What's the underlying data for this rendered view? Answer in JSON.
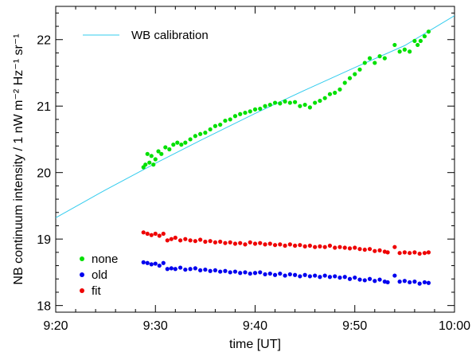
{
  "chart_data": {
    "type": "scatter",
    "title": "",
    "xlabel": "time [UT]",
    "ylabel": "NB continuum intensity / 1 nW m⁻² Hz⁻¹ sr⁻¹",
    "x_unit": "minutes after 9:00 UT",
    "xlim": [
      20,
      60
    ],
    "ylim": [
      17.9,
      22.5
    ],
    "x_ticks": [
      {
        "value": 20,
        "label": "9:20"
      },
      {
        "value": 30,
        "label": "9:30"
      },
      {
        "value": 40,
        "label": "9:40"
      },
      {
        "value": 50,
        "label": "9:50"
      },
      {
        "value": 60,
        "label": "10:00"
      }
    ],
    "y_ticks": [
      {
        "value": 18,
        "label": "18"
      },
      {
        "value": 19,
        "label": "19"
      },
      {
        "value": 20,
        "label": "20"
      },
      {
        "value": 21,
        "label": "21"
      },
      {
        "value": 22,
        "label": "22"
      }
    ],
    "grid": false,
    "legends": [
      {
        "placement": "top-left",
        "entries": [
          {
            "name": "WB calibration",
            "color": "#33ccee",
            "kind": "line"
          }
        ]
      },
      {
        "placement": "bottom-left",
        "entries": [
          {
            "name": "none",
            "color": "#00e000",
            "kind": "point"
          },
          {
            "name": "old",
            "color": "#0000ee",
            "kind": "point"
          },
          {
            "name": "fit",
            "color": "#ee0000",
            "kind": "point"
          }
        ]
      }
    ],
    "series": [
      {
        "name": "WB calibration",
        "kind": "line",
        "color": "#33ccee",
        "x": [
          20,
          25,
          30,
          35,
          40,
          45,
          50,
          55,
          60
        ],
        "y": [
          19.32,
          19.74,
          20.14,
          20.52,
          20.89,
          21.24,
          21.58,
          21.91,
          22.36
        ]
      },
      {
        "name": "none",
        "kind": "points",
        "color": "#00e000",
        "x": [
          28.8,
          29.0,
          29.2,
          29.4,
          29.6,
          29.8,
          30.0,
          30.3,
          30.6,
          31.0,
          31.4,
          31.8,
          32.2,
          32.6,
          33.0,
          33.5,
          34.0,
          34.5,
          35.0,
          35.5,
          36.0,
          36.5,
          37.0,
          37.5,
          38.0,
          38.5,
          39.0,
          39.5,
          40.0,
          40.5,
          41.0,
          41.5,
          42.0,
          42.5,
          43.0,
          43.5,
          44.0,
          44.5,
          45.0,
          45.5,
          46.0,
          46.5,
          47.0,
          47.5,
          48.0,
          48.5,
          49.0,
          49.5,
          50.0,
          50.5,
          51.0,
          51.5,
          52.0,
          52.5,
          53.0,
          54.0,
          54.5,
          55.0,
          55.5,
          56.0,
          56.3,
          56.6,
          57.0,
          57.4
        ],
        "y": [
          20.08,
          20.12,
          20.28,
          20.15,
          20.25,
          20.12,
          20.2,
          20.32,
          20.28,
          20.38,
          20.35,
          20.42,
          20.45,
          20.42,
          20.45,
          20.5,
          20.55,
          20.58,
          20.6,
          20.65,
          20.7,
          20.72,
          20.78,
          20.8,
          20.85,
          20.88,
          20.9,
          20.92,
          20.95,
          20.96,
          21.0,
          21.02,
          21.05,
          21.04,
          21.07,
          21.05,
          21.06,
          21.0,
          21.02,
          20.98,
          21.05,
          21.08,
          21.12,
          21.18,
          21.2,
          21.25,
          21.35,
          21.42,
          21.48,
          21.55,
          21.65,
          21.72,
          21.65,
          21.75,
          21.72,
          21.92,
          21.82,
          21.85,
          21.82,
          21.98,
          21.92,
          21.98,
          22.05,
          22.12
        ]
      },
      {
        "name": "old",
        "kind": "points",
        "color": "#0000ee",
        "x": [
          28.8,
          29.2,
          29.6,
          30.0,
          30.4,
          30.8,
          31.2,
          31.6,
          32.0,
          32.5,
          33.0,
          33.5,
          34.0,
          34.5,
          35.0,
          35.5,
          36.0,
          36.5,
          37.0,
          37.5,
          38.0,
          38.5,
          39.0,
          39.5,
          40.0,
          40.5,
          41.0,
          41.5,
          42.0,
          42.5,
          43.0,
          43.5,
          44.0,
          44.5,
          45.0,
          45.5,
          46.0,
          46.5,
          47.0,
          47.5,
          48.0,
          48.5,
          49.0,
          49.5,
          50.0,
          50.5,
          51.0,
          51.5,
          52.0,
          52.5,
          53.0,
          53.3,
          54.0,
          54.5,
          55.0,
          55.5,
          56.0,
          56.5,
          57.0,
          57.4
        ],
        "y": [
          18.65,
          18.64,
          18.62,
          18.63,
          18.6,
          18.64,
          18.55,
          18.56,
          18.55,
          18.57,
          18.54,
          18.55,
          18.56,
          18.53,
          18.54,
          18.52,
          18.53,
          18.51,
          18.52,
          18.5,
          18.51,
          18.49,
          18.5,
          18.48,
          18.49,
          18.5,
          18.47,
          18.48,
          18.46,
          18.48,
          18.45,
          18.47,
          18.46,
          18.44,
          18.46,
          18.44,
          18.45,
          18.43,
          18.45,
          18.43,
          18.44,
          18.42,
          18.43,
          18.4,
          18.42,
          18.39,
          18.38,
          18.4,
          18.37,
          18.39,
          18.36,
          18.35,
          18.45,
          18.36,
          18.37,
          18.35,
          18.36,
          18.33,
          18.35,
          18.34
        ]
      },
      {
        "name": "fit",
        "kind": "points",
        "color": "#ee0000",
        "x": [
          28.8,
          29.2,
          29.6,
          30.0,
          30.4,
          30.8,
          31.2,
          31.6,
          32.0,
          32.5,
          33.0,
          33.5,
          34.0,
          34.5,
          35.0,
          35.5,
          36.0,
          36.5,
          37.0,
          37.5,
          38.0,
          38.5,
          39.0,
          39.5,
          40.0,
          40.5,
          41.0,
          41.5,
          42.0,
          42.5,
          43.0,
          43.5,
          44.0,
          44.5,
          45.0,
          45.5,
          46.0,
          46.5,
          47.0,
          47.5,
          48.0,
          48.5,
          49.0,
          49.5,
          50.0,
          50.5,
          51.0,
          51.5,
          52.0,
          52.5,
          53.0,
          53.3,
          54.0,
          54.5,
          55.0,
          55.5,
          56.0,
          56.5,
          57.0,
          57.4
        ],
        "y": [
          19.1,
          19.08,
          19.06,
          19.08,
          19.05,
          19.08,
          18.98,
          19.0,
          19.02,
          18.98,
          19.0,
          18.98,
          18.97,
          18.99,
          18.96,
          18.97,
          18.95,
          18.96,
          18.94,
          18.95,
          18.93,
          18.94,
          18.92,
          18.95,
          18.93,
          18.94,
          18.92,
          18.93,
          18.91,
          18.92,
          18.9,
          18.92,
          18.9,
          18.91,
          18.89,
          18.9,
          18.88,
          18.89,
          18.88,
          18.9,
          18.87,
          18.88,
          18.87,
          18.86,
          18.87,
          18.85,
          18.84,
          18.85,
          18.82,
          18.83,
          18.81,
          18.8,
          18.88,
          18.79,
          18.8,
          18.79,
          18.8,
          18.78,
          18.79,
          18.8
        ]
      }
    ]
  }
}
